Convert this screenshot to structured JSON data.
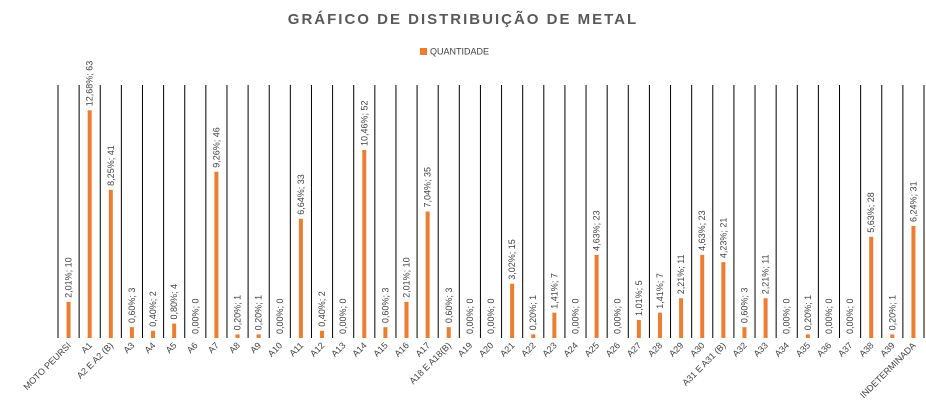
{
  "chart_data": {
    "type": "bar",
    "title": "GRÁFICO DE DISTRIBUIÇÃO DE METAL",
    "categories": [
      "MOTO PEURSI",
      "A1",
      "A2 E A2 (B)",
      "A3",
      "A4",
      "A5",
      "A6",
      "A7",
      "A8",
      "A9",
      "A10",
      "A11",
      "A12",
      "A13",
      "A14",
      "A15",
      "A16",
      "A17",
      "A18 E A18(B)",
      "A19",
      "A20",
      "A21",
      "A22",
      "A23",
      "A24",
      "A25",
      "A26",
      "A27",
      "A28",
      "A29",
      "A30",
      "A31 E A31 (B)",
      "A32",
      "A33",
      "A34",
      "A35",
      "A36",
      "A37",
      "A38",
      "A39",
      "INDETERMINADA"
    ],
    "series": [
      {
        "name": "QUANTIDADE",
        "color": "#ed7d31",
        "values": [
          10,
          63,
          41,
          3,
          2,
          4,
          0,
          46,
          1,
          1,
          0,
          33,
          2,
          0,
          52,
          3,
          10,
          35,
          3,
          0,
          0,
          15,
          1,
          7,
          0,
          23,
          0,
          5,
          7,
          11,
          23,
          21,
          3,
          11,
          0,
          1,
          0,
          0,
          28,
          1,
          31
        ],
        "value_labels": [
          "2,01%; 10",
          "12,68%; 63",
          "8,25%; 41",
          "0,60%; 3",
          "0,40%; 2",
          "0,80%; 4",
          "0,00%; 0",
          "9,26%; 46",
          "0,20%; 1",
          "0,20%; 1",
          "0,00%; 0",
          "6,64%; 33",
          "0,40%; 2",
          "0,00%; 0",
          "10,46%; 52",
          "0,60%; 3",
          "2,01%; 10",
          "7,04%; 35",
          "0,60%; 3",
          "0,00%; 0",
          "0,00%; 0",
          "3,02%; 15",
          "0,20%; 1",
          "1,41%; 7",
          "0,00%; 0",
          "4,63%; 23",
          "0,00%; 0",
          "1,01%; 5",
          "1,41%; 7",
          "2,21%; 11",
          "4,63%; 23",
          "4,23%; 21",
          "0,60%; 3",
          "2,21%; 11",
          "0,00%; 0",
          "0,20%; 1",
          "0,00%; 0",
          "0,00%; 0",
          "5,63%; 28",
          "0,20%; 1",
          "6,24%; 31"
        ]
      }
    ],
    "ylim": [
      0,
      70
    ]
  }
}
